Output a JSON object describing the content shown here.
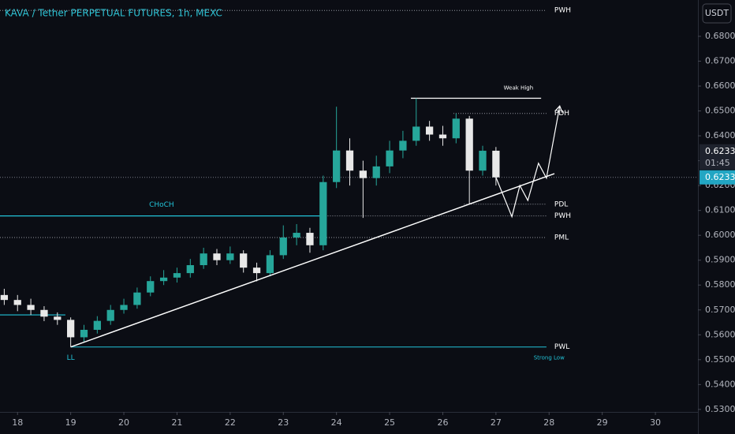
{
  "chart_data": {
    "type": "candlestick",
    "title": "KAVA / Tether PERPETUAL FUTURES, 1h, MEXC",
    "currency": "USDT",
    "x": [
      17.75,
      18.0,
      18.25,
      18.5,
      18.75,
      19.0,
      19.25,
      19.5,
      19.75,
      20.0,
      20.25,
      20.5,
      20.75,
      21.0,
      21.25,
      21.5,
      21.75,
      22.0,
      22.25,
      22.5,
      22.75,
      23.0,
      23.25,
      23.5,
      23.75,
      24.0,
      24.25,
      24.5,
      24.75,
      25.0,
      25.25,
      25.5,
      25.75,
      26.0,
      26.25,
      26.5,
      26.75,
      27.0
    ],
    "open": [
      0.576,
      0.574,
      0.572,
      0.57,
      0.5673,
      0.566,
      0.559,
      0.562,
      0.5656,
      0.57,
      0.572,
      0.577,
      0.5816,
      0.583,
      0.5848,
      0.588,
      0.5927,
      0.59,
      0.5927,
      0.587,
      0.5848,
      0.592,
      0.5991,
      0.601,
      0.596,
      0.6214,
      0.6341,
      0.626,
      0.623,
      0.6277,
      0.6341,
      0.638,
      0.6437,
      0.6405,
      0.639,
      0.6469,
      0.626,
      0.634
    ],
    "high": [
      0.5785,
      0.576,
      0.5745,
      0.5715,
      0.569,
      0.567,
      0.564,
      0.5675,
      0.572,
      0.5745,
      0.579,
      0.5835,
      0.586,
      0.587,
      0.5905,
      0.595,
      0.5945,
      0.5955,
      0.594,
      0.589,
      0.594,
      0.604,
      0.6045,
      0.603,
      0.624,
      0.6517,
      0.639,
      0.63,
      0.632,
      0.638,
      0.642,
      0.6551,
      0.646,
      0.644,
      0.649,
      0.648,
      0.636,
      0.6355
    ],
    "low": [
      0.572,
      0.5695,
      0.568,
      0.5655,
      0.564,
      0.5551,
      0.557,
      0.5605,
      0.564,
      0.5685,
      0.5705,
      0.5755,
      0.58,
      0.581,
      0.583,
      0.5865,
      0.588,
      0.5885,
      0.585,
      0.5815,
      0.5835,
      0.5905,
      0.596,
      0.593,
      0.594,
      0.619,
      0.62,
      0.607,
      0.62,
      0.625,
      0.631,
      0.636,
      0.638,
      0.636,
      0.637,
      0.6125,
      0.624,
      0.62
    ],
    "close": [
      0.574,
      0.572,
      0.57,
      0.5673,
      0.566,
      0.559,
      0.562,
      0.5656,
      0.57,
      0.572,
      0.577,
      0.5816,
      0.583,
      0.5848,
      0.588,
      0.5927,
      0.59,
      0.5927,
      0.587,
      0.5848,
      0.592,
      0.5991,
      0.601,
      0.596,
      0.6214,
      0.6341,
      0.626,
      0.623,
      0.6277,
      0.6341,
      0.638,
      0.6437,
      0.6405,
      0.639,
      0.6469,
      0.626,
      0.634,
      0.6233
    ],
    "up_color": "#26a69a",
    "down_color": "#e8e8e8",
    "xlim": [
      17.67,
      30.8
    ],
    "xticks": [
      18,
      19,
      20,
      21,
      22,
      23,
      24,
      25,
      26,
      27,
      28,
      29,
      30
    ],
    "ylim": [
      0.529,
      0.6946
    ],
    "yticks": [
      {
        "value": 0.68,
        "label": "0.6800"
      },
      {
        "value": 0.67,
        "label": "0.6700"
      },
      {
        "value": 0.66,
        "label": "0.6600"
      },
      {
        "value": 0.65,
        "label": "0.6500"
      },
      {
        "value": 0.64,
        "label": "0.6400"
      },
      {
        "value": 0.63,
        "label": "0.6300"
      },
      {
        "value": 0.62,
        "label": "0.6200"
      },
      {
        "value": 0.61,
        "label": "0.6100"
      },
      {
        "value": 0.6,
        "label": "0.6000"
      },
      {
        "value": 0.59,
        "label": "0.5900"
      },
      {
        "value": 0.58,
        "label": "0.5800"
      },
      {
        "value": 0.57,
        "label": "0.5700"
      },
      {
        "value": 0.56,
        "label": "0.5600"
      },
      {
        "value": 0.55,
        "label": "0.5500"
      },
      {
        "value": 0.54,
        "label": "0.5400"
      },
      {
        "value": 0.53,
        "label": "0.5300"
      }
    ],
    "last_price": {
      "value": 0.6233,
      "label": "0.6233"
    },
    "countdown": "01:45",
    "levels": [
      {
        "label": "PWH",
        "value": 0.6904,
        "from": 17.67,
        "style": "dotted"
      },
      {
        "label": "PDH",
        "value": 0.649,
        "from": 26.2,
        "style": "dotted"
      },
      {
        "label": "PDL",
        "value": 0.6125,
        "from": 26.4,
        "style": "dotted"
      },
      {
        "label": "PWH",
        "value": 0.6078,
        "from": 23.7,
        "style": "dotted"
      },
      {
        "label": "PML",
        "value": 0.5991,
        "from": 17.67,
        "style": "dotted"
      },
      {
        "label": "PWL",
        "value": 0.5551,
        "from": 19.0,
        "style": "solid"
      }
    ],
    "structure": [
      {
        "label": "Weak High",
        "value": 0.6551,
        "from": 25.4,
        "to": 27.85,
        "color": "#ffffff"
      },
      {
        "label": "CHoCH",
        "value": 0.6078,
        "from": 17.67,
        "to": 23.75,
        "color": "#22c3d8"
      },
      {
        "value": 0.568,
        "from": 17.67,
        "to": 18.9,
        "color": "#22c3d8"
      }
    ],
    "point_labels": [
      {
        "label": "LL",
        "x": 19.0,
        "y": 0.5551
      },
      {
        "label": "Strong Low",
        "x": 28.0,
        "y": 0.5551
      }
    ],
    "trendline": {
      "x": [
        19.0,
        28.1
      ],
      "y": [
        0.5551,
        0.6248
      ]
    },
    "projection": {
      "x": [
        27.0,
        27.3,
        27.45,
        27.6,
        27.8,
        27.95,
        28.2
      ],
      "y": [
        0.6233,
        0.6075,
        0.62,
        0.614,
        0.629,
        0.623,
        0.652
      ]
    }
  }
}
